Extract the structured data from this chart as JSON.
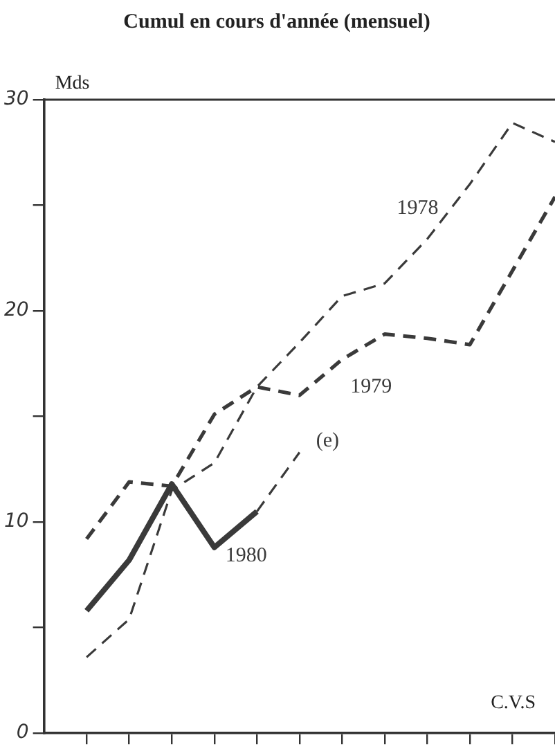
{
  "chart_data": {
    "type": "line",
    "title": "Cumul en cours d'année (mensuel)",
    "ylabel": "Mds",
    "categories": [
      null,
      null,
      null,
      null,
      null,
      null,
      null,
      null,
      null,
      null,
      null,
      null
    ],
    "series": [
      {
        "name": "1978",
        "color": "#3a3a3a",
        "line_style": "dashed",
        "values": [
          3.6,
          5.4,
          11.5,
          12.8,
          16.4,
          18.5,
          20.7,
          21.3,
          23.4,
          26.0,
          28.9,
          28.0
        ]
      },
      {
        "name": "1979",
        "color": "#3a3a3a",
        "line_style": "dashed",
        "values": [
          9.2,
          11.9,
          11.7,
          15.1,
          16.4,
          16.0,
          17.7,
          18.9,
          18.7,
          18.4,
          21.9,
          25.4
        ]
      },
      {
        "name": "1980",
        "color": "#3a3a3a",
        "line_style": "solid",
        "values": [
          5.8,
          8.2,
          11.8,
          8.8,
          10.5,
          null,
          null,
          null,
          null,
          null,
          null,
          null
        ]
      },
      {
        "name": "(e)",
        "color": "#3a3a3a",
        "line_style": "dashed",
        "values": [
          null,
          null,
          null,
          null,
          10.5,
          13.3,
          null,
          null,
          null,
          null,
          null,
          null
        ]
      }
    ],
    "ylim": [
      0,
      30
    ],
    "yticks": [
      0,
      {
        "value": 5,
        "label": null
      },
      10,
      {
        "value": 15,
        "label": null
      },
      20,
      {
        "value": 25,
        "label": null
      },
      30
    ],
    "tick_labels": "y",
    "grid": false,
    "legend": false,
    "marker": "none",
    "annotations": [
      "C.V.S"
    ]
  }
}
